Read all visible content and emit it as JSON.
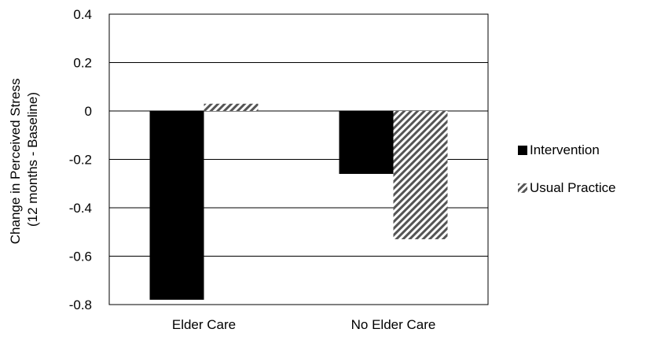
{
  "chart_data": {
    "type": "bar",
    "title": "",
    "xlabel": "",
    "ylabel": [
      "Change in Perceived Stress",
      "(12 months - Baseline)"
    ],
    "categories": [
      "Elder Care",
      "No Elder Care"
    ],
    "series": [
      {
        "name": "Intervention",
        "values": [
          -0.78,
          -0.26
        ],
        "color": "#000000",
        "pattern": "solid"
      },
      {
        "name": "Usual Practice",
        "values": [
          0.03,
          -0.53
        ],
        "color": "#555555",
        "pattern": "diagonal-hatch"
      }
    ],
    "ylim": [
      -0.8,
      0.4
    ],
    "yticks": [
      "0.4",
      "0.2",
      "0",
      "-0.2",
      "-0.4",
      "-0.6",
      "-0.8"
    ],
    "grid": true,
    "legend_position": "right"
  }
}
